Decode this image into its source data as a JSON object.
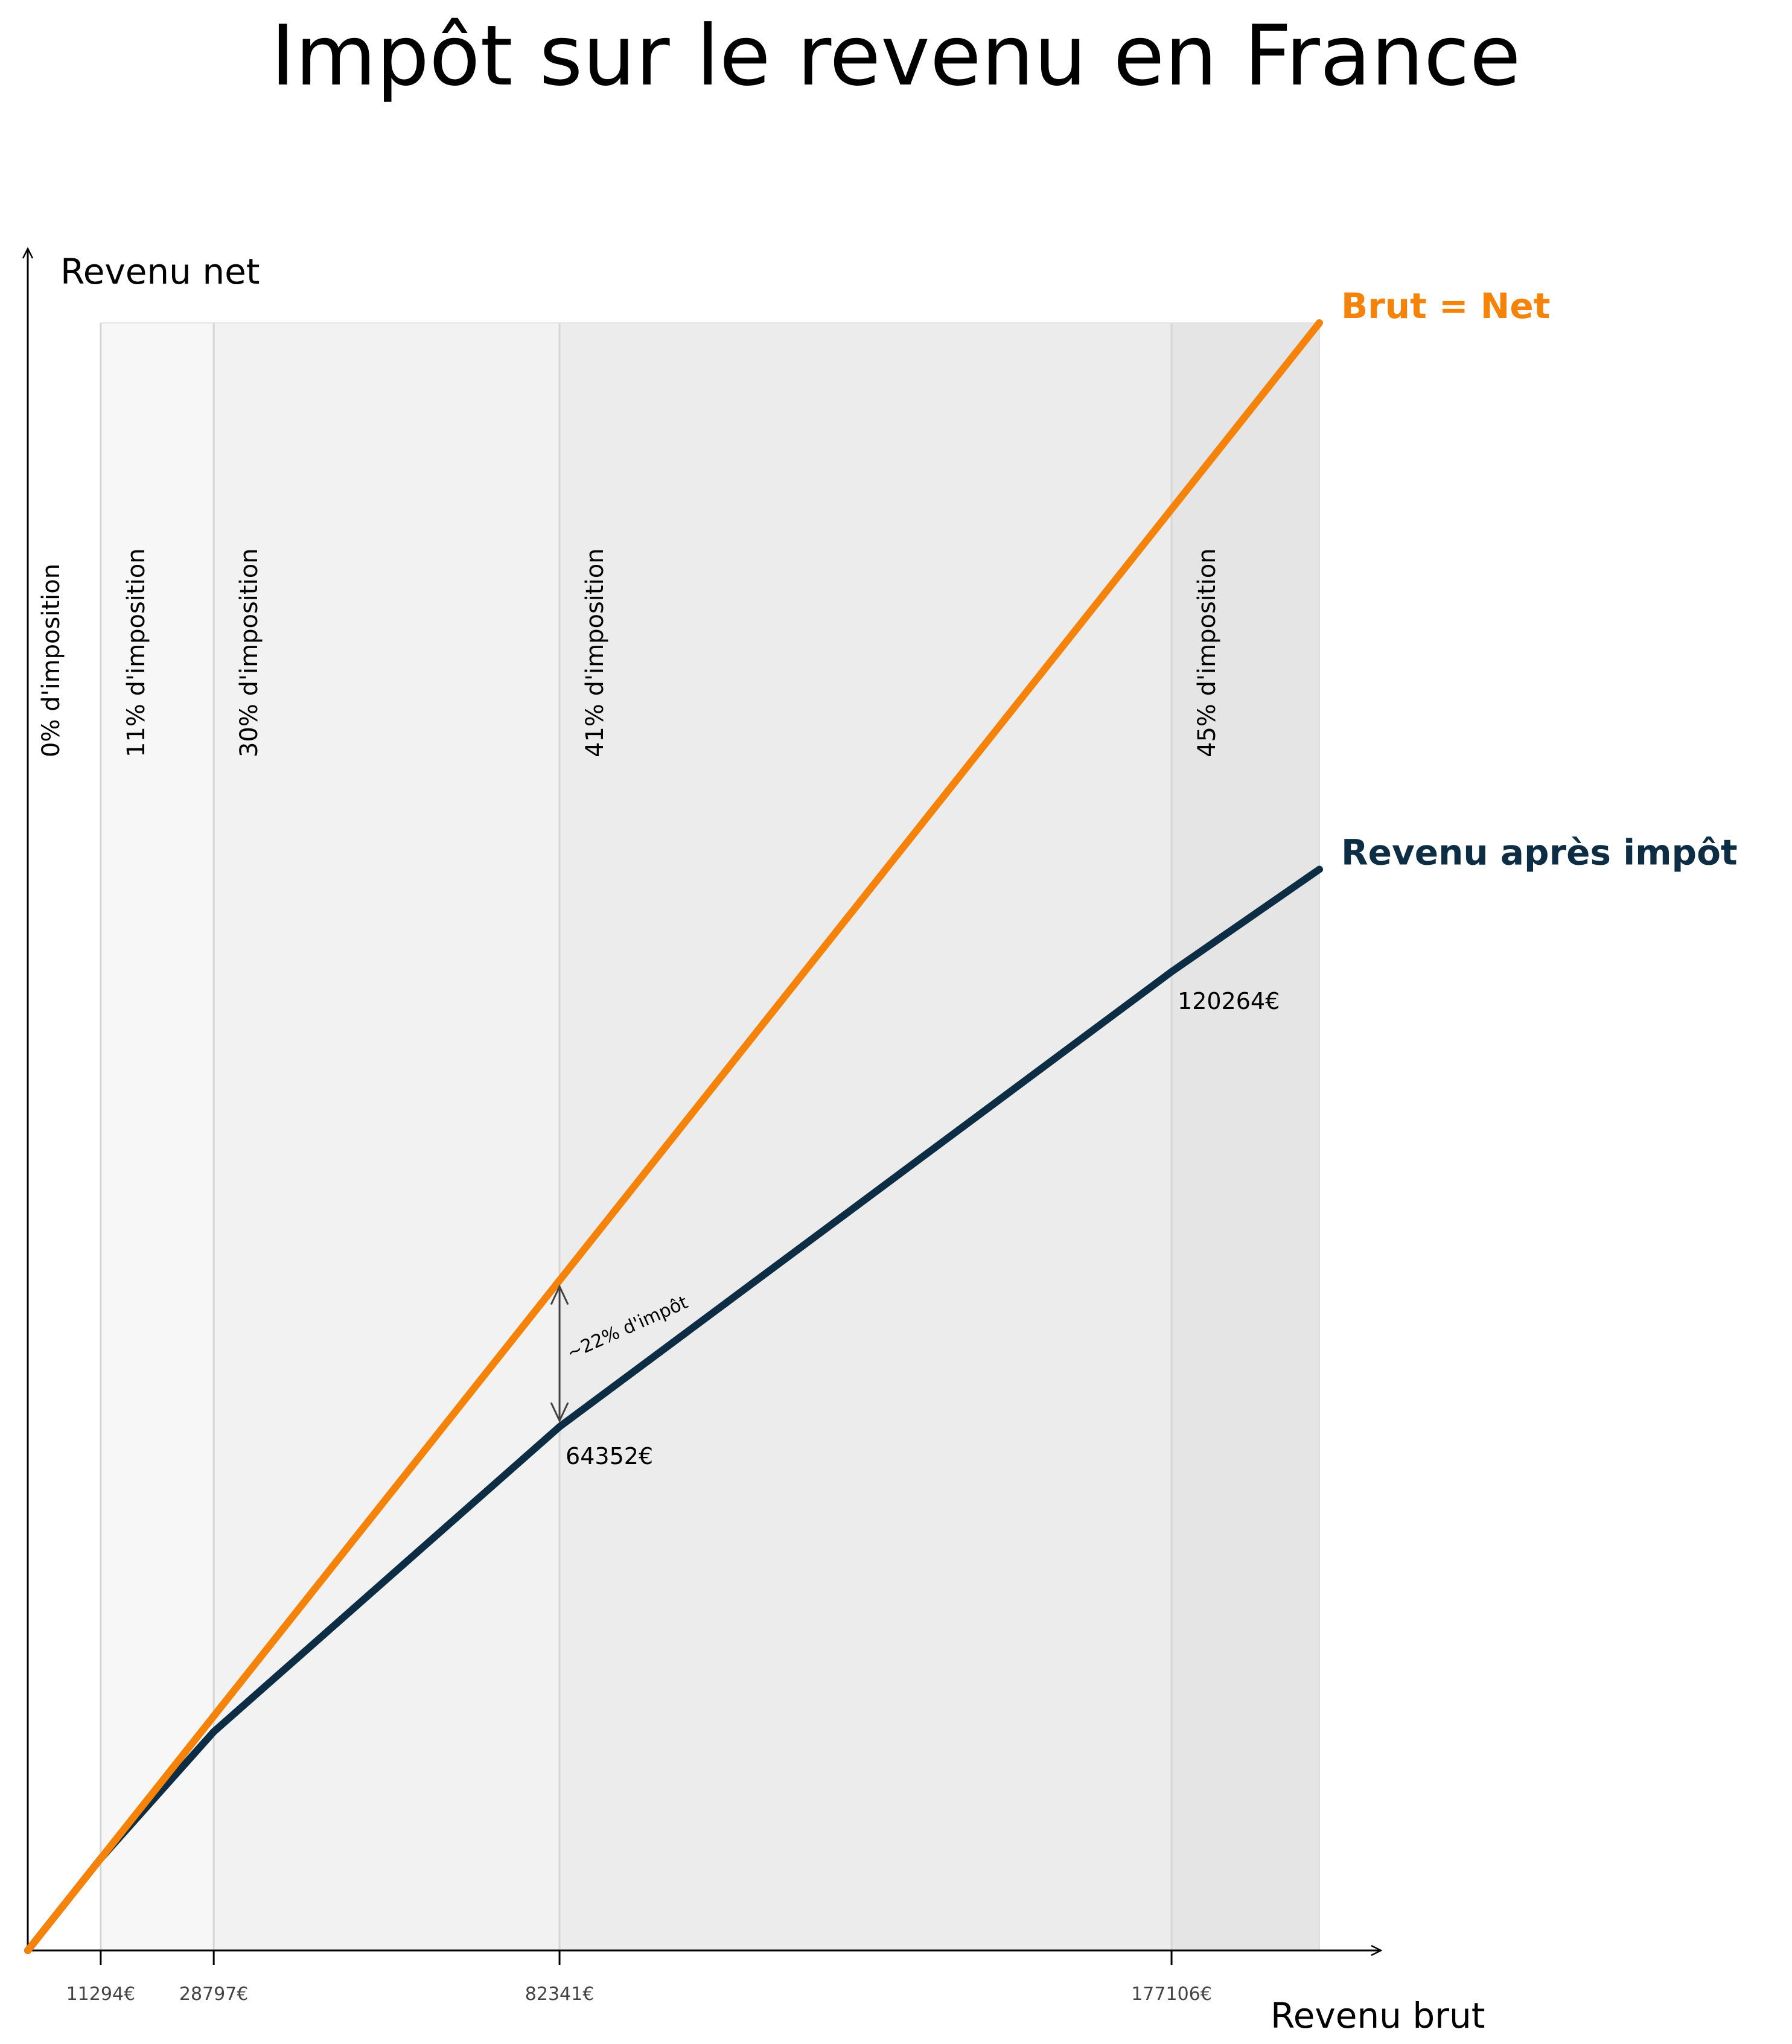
{
  "chart_data": {
    "type": "line",
    "title": "Impôt sur le revenu en France",
    "xlabel": "Revenu brut",
    "ylabel": "Revenu net",
    "xlim": [
      0,
      200000
    ],
    "ylim": [
      0,
      200000
    ],
    "grid": false,
    "series": [
      {
        "name": "Brut = Net",
        "color": "#f5830a",
        "x": [
          0,
          200000
        ],
        "y": [
          0,
          200000
        ]
      },
      {
        "name": "Revenu après impôt",
        "color": "#0d2d45",
        "x": [
          0,
          11294,
          28797,
          82341,
          177106,
          200000
        ],
        "y": [
          0,
          11294,
          26871,
          64352,
          120264,
          132855
        ]
      }
    ],
    "brackets": [
      {
        "from": 0,
        "to": 11294,
        "label": "0% d'imposition",
        "shade": "#ffffff"
      },
      {
        "from": 11294,
        "to": 28797,
        "label": "11% d'imposition",
        "shade": "#f7f7f7"
      },
      {
        "from": 28797,
        "to": 82341,
        "label": "30% d'imposition",
        "shade": "#f2f2f2"
      },
      {
        "from": 82341,
        "to": 177106,
        "label": "41% d'imposition",
        "shade": "#ececec"
      },
      {
        "from": 177106,
        "to": 200000,
        "label": "45% d'imposition",
        "shade": "#e5e5e5"
      }
    ],
    "x_ticks": [
      {
        "value": 11294,
        "label": "11294€"
      },
      {
        "value": 28797,
        "label": "28797€"
      },
      {
        "value": 82341,
        "label": "82341€"
      },
      {
        "value": 177106,
        "label": "177106€"
      }
    ],
    "point_labels": [
      {
        "x": 82341,
        "y": 64352,
        "label": "64352€"
      },
      {
        "x": 177106,
        "y": 120264,
        "label": "120264€"
      }
    ],
    "annotation": {
      "x": 82341,
      "y_top": 82341,
      "y_bottom": 64352,
      "label": "~22% d'impôt"
    }
  }
}
